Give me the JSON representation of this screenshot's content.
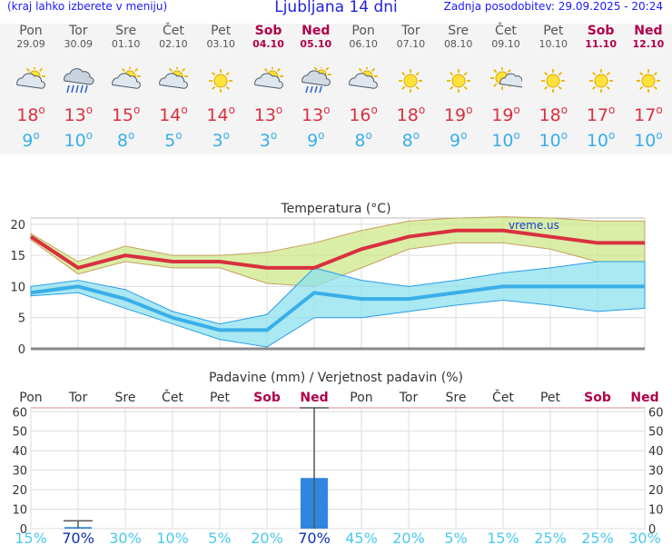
{
  "header": {
    "menu_hint": "(kraj lahko izberete v meniju)",
    "title": "Ljubljana 14 dni",
    "updated": "Zadnja posodobitev: 29.09.2025 - 20:24"
  },
  "days": [
    {
      "name": "Pon",
      "date": "29.09",
      "weekend": false,
      "icon": "partly-cloudy-sun-icon",
      "tmax": "18",
      "tmin": "9"
    },
    {
      "name": "Tor",
      "date": "30.09",
      "weekend": false,
      "icon": "rain-cloud-icon",
      "tmax": "13",
      "tmin": "10"
    },
    {
      "name": "Sre",
      "date": "01.10",
      "weekend": false,
      "icon": "partly-cloudy-sun-icon",
      "tmax": "15",
      "tmin": "8"
    },
    {
      "name": "Čet",
      "date": "02.10",
      "weekend": false,
      "icon": "partly-cloudy-sun-icon",
      "tmax": "14",
      "tmin": "5"
    },
    {
      "name": "Pet",
      "date": "03.10",
      "weekend": false,
      "icon": "sun-icon",
      "tmax": "14",
      "tmin": "3"
    },
    {
      "name": "Sob",
      "date": "04.10",
      "weekend": true,
      "icon": "partly-cloudy-sun-icon",
      "tmax": "13",
      "tmin": "3"
    },
    {
      "name": "Ned",
      "date": "05.10",
      "weekend": true,
      "icon": "sun-rain-cloud-icon",
      "tmax": "13",
      "tmin": "9"
    },
    {
      "name": "Pon",
      "date": "06.10",
      "weekend": false,
      "icon": "partly-cloudy-sun-icon",
      "tmax": "16",
      "tmin": "8"
    },
    {
      "name": "Tor",
      "date": "07.10",
      "weekend": false,
      "icon": "sun-icon",
      "tmax": "18",
      "tmin": "8"
    },
    {
      "name": "Sre",
      "date": "08.10",
      "weekend": false,
      "icon": "sun-icon",
      "tmax": "19",
      "tmin": "9"
    },
    {
      "name": "Čet",
      "date": "09.10",
      "weekend": false,
      "icon": "sun-behind-cloud-icon",
      "tmax": "19",
      "tmin": "10"
    },
    {
      "name": "Pet",
      "date": "10.10",
      "weekend": false,
      "icon": "sun-icon",
      "tmax": "18",
      "tmin": "10"
    },
    {
      "name": "Sob",
      "date": "11.10",
      "weekend": true,
      "icon": "sun-icon",
      "tmax": "17",
      "tmin": "10"
    },
    {
      "name": "Ned",
      "date": "12.10",
      "weekend": true,
      "icon": "sun-icon",
      "tmax": "17",
      "tmin": "10"
    }
  ],
  "colors": {
    "weekend": "#b0004a",
    "tmax_line": "#d9303f",
    "tmin_line": "#3aaee8",
    "tmax_band": "#cde88a",
    "tmin_band": "#8ee0ee",
    "precip_bar": "#2f86e0",
    "probability_high": "#0a2fb8",
    "probability_low": "#4cc9ee"
  },
  "chart_data": [
    {
      "type": "line",
      "title": "Temperatura (°C)",
      "watermark": "vreme.us",
      "categories": [
        "Pon",
        "Tor",
        "Sre",
        "Čet",
        "Pet",
        "Sob",
        "Ned",
        "Pon",
        "Tor",
        "Sre",
        "Čet",
        "Pet",
        "Sob",
        "Ned"
      ],
      "ylim": [
        0,
        21
      ],
      "yticks": [
        0,
        5,
        10,
        15,
        20
      ],
      "grid": true,
      "series": [
        {
          "key": "tmax",
          "values": [
            18,
            13,
            15,
            14,
            14,
            13,
            13,
            16,
            18,
            19,
            19,
            18,
            17,
            17
          ]
        },
        {
          "key": "tmin",
          "values": [
            9,
            10,
            8,
            5,
            3,
            3,
            9,
            8,
            8,
            9,
            10,
            10,
            10,
            10
          ]
        }
      ],
      "bands": [
        {
          "key": "tmax_band",
          "low": [
            17.5,
            12,
            14,
            13,
            13,
            10.5,
            10,
            13,
            16,
            17,
            17,
            16,
            14,
            14
          ],
          "high": [
            18.5,
            14,
            16.5,
            15,
            15,
            15.5,
            17,
            19,
            20.5,
            21,
            21.2,
            21,
            20.5,
            20.5
          ]
        },
        {
          "key": "tmin_band",
          "low": [
            8.5,
            9,
            6.5,
            4,
            1.5,
            0.3,
            5,
            5,
            6,
            7,
            7.8,
            7,
            6,
            6.5
          ],
          "high": [
            10,
            11,
            9.5,
            6,
            4,
            5.5,
            13,
            11,
            10,
            11,
            12.2,
            13,
            14,
            14
          ]
        }
      ]
    },
    {
      "type": "bar",
      "title": "Padavine (mm) / Verjetnost padavin (%)",
      "categories": [
        "Pon",
        "Tor",
        "Sre",
        "Čet",
        "Pet",
        "Sob",
        "Ned",
        "Pon",
        "Tor",
        "Sre",
        "Čet",
        "Pet",
        "Sob",
        "Ned"
      ],
      "ylim": [
        0,
        62
      ],
      "yticks": [
        0,
        10,
        20,
        30,
        40,
        50,
        60
      ],
      "values": [
        0,
        0.8,
        0,
        0,
        0,
        0,
        26,
        0,
        0,
        0,
        0,
        0,
        0,
        0
      ],
      "error_high": [
        0,
        4,
        0,
        0,
        0,
        0,
        62,
        0,
        0,
        0,
        0,
        0,
        0,
        0
      ],
      "probability": [
        "15%",
        "70%",
        "30%",
        "10%",
        "5%",
        "20%",
        "70%",
        "45%",
        "20%",
        "5%",
        "15%",
        "25%",
        "25%",
        "30%"
      ],
      "probability_values": [
        15,
        70,
        30,
        10,
        5,
        20,
        70,
        45,
        20,
        5,
        15,
        25,
        25,
        30
      ]
    }
  ]
}
